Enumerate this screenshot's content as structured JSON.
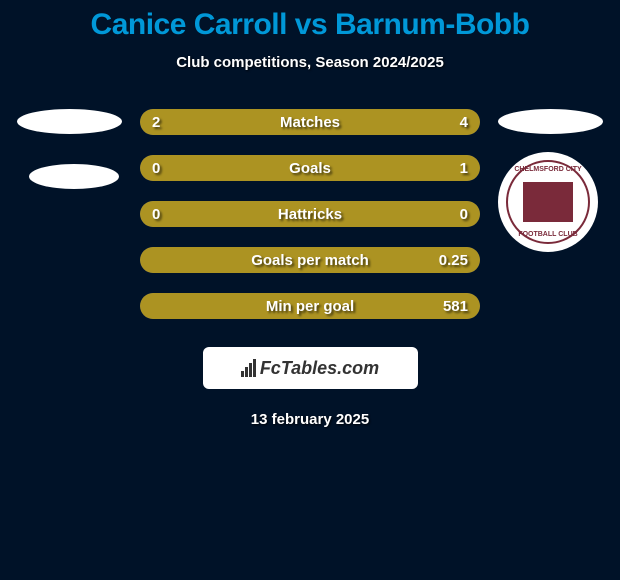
{
  "title": "Canice Carroll vs Barnum-Bobb",
  "subtitle": "Club competitions, Season 2024/2025",
  "colors": {
    "background": "#001228",
    "accent": "#0098d8",
    "bar_fill": "#ac9322",
    "bar_empty": "#636363",
    "text": "#ffffff",
    "badge": "#7a2a3a"
  },
  "stats": [
    {
      "label": "Matches",
      "left_value": "2",
      "right_value": "4",
      "left_pct": 33,
      "right_pct": 67
    },
    {
      "label": "Goals",
      "left_value": "0",
      "right_value": "1",
      "left_pct": 0,
      "right_pct": 100
    },
    {
      "label": "Hattricks",
      "left_value": "0",
      "right_value": "0",
      "left_pct": 100,
      "right_pct": 0
    },
    {
      "label": "Goals per match",
      "left_value": "",
      "right_value": "0.25",
      "left_pct": 0,
      "right_pct": 100
    },
    {
      "label": "Min per goal",
      "left_value": "",
      "right_value": "581",
      "left_pct": 0,
      "right_pct": 100
    }
  ],
  "badge": {
    "top_text": "CHELMSFORD CITY",
    "bottom_text": "FOOTBALL CLUB"
  },
  "footer": {
    "logo_text": "FcTables.com"
  },
  "date": "13 february 2025"
}
